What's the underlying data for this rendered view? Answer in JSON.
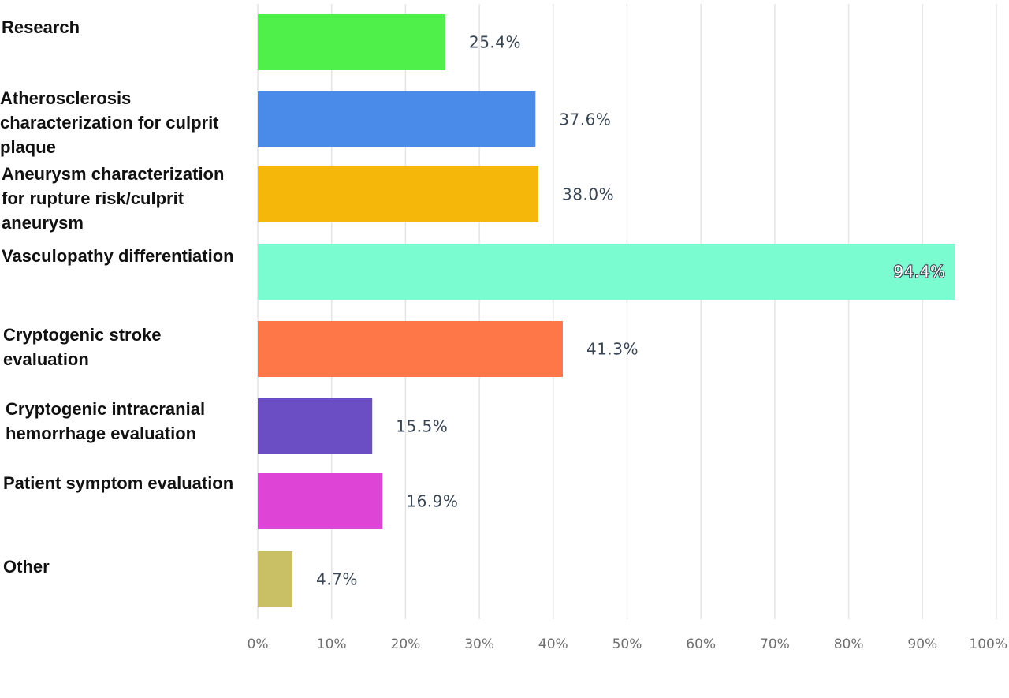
{
  "chart_data": {
    "type": "bar",
    "orientation": "horizontal",
    "xlim": [
      0,
      100
    ],
    "grid": true,
    "x_tick_labels": [
      "0%",
      "10%",
      "20%",
      "30%",
      "40%",
      "50%",
      "60%",
      "70%",
      "80%",
      "90%",
      "100%"
    ],
    "categories": [
      [
        "Research"
      ],
      [
        "Atherosclerosis",
        "characterization for culprit",
        "plaque"
      ],
      [
        "Aneurysm characterization",
        "for rupture risk/culprit",
        "aneurysm"
      ],
      [
        "Vasculopathy differentiation"
      ],
      [
        "Cryptogenic stroke",
        "evaluation"
      ],
      [
        "Cryptogenic intracranial",
        "hemorrhage evaluation"
      ],
      [
        "Patient symptom evaluation"
      ],
      [
        "Other"
      ]
    ],
    "values": [
      25.4,
      37.6,
      38.0,
      94.4,
      41.3,
      15.5,
      16.9,
      4.7
    ],
    "data_labels": [
      "25.4%",
      "37.6%",
      "38.0%",
      "94.4%",
      "41.3%",
      "15.5%",
      "16.9%",
      "4.7%"
    ],
    "colors": [
      "#4ff04a",
      "#4a8bea",
      "#f5b80a",
      "#7bfcd0",
      "#fd7748",
      "#6c4ec4",
      "#de45d6",
      "#c9c065"
    ]
  }
}
